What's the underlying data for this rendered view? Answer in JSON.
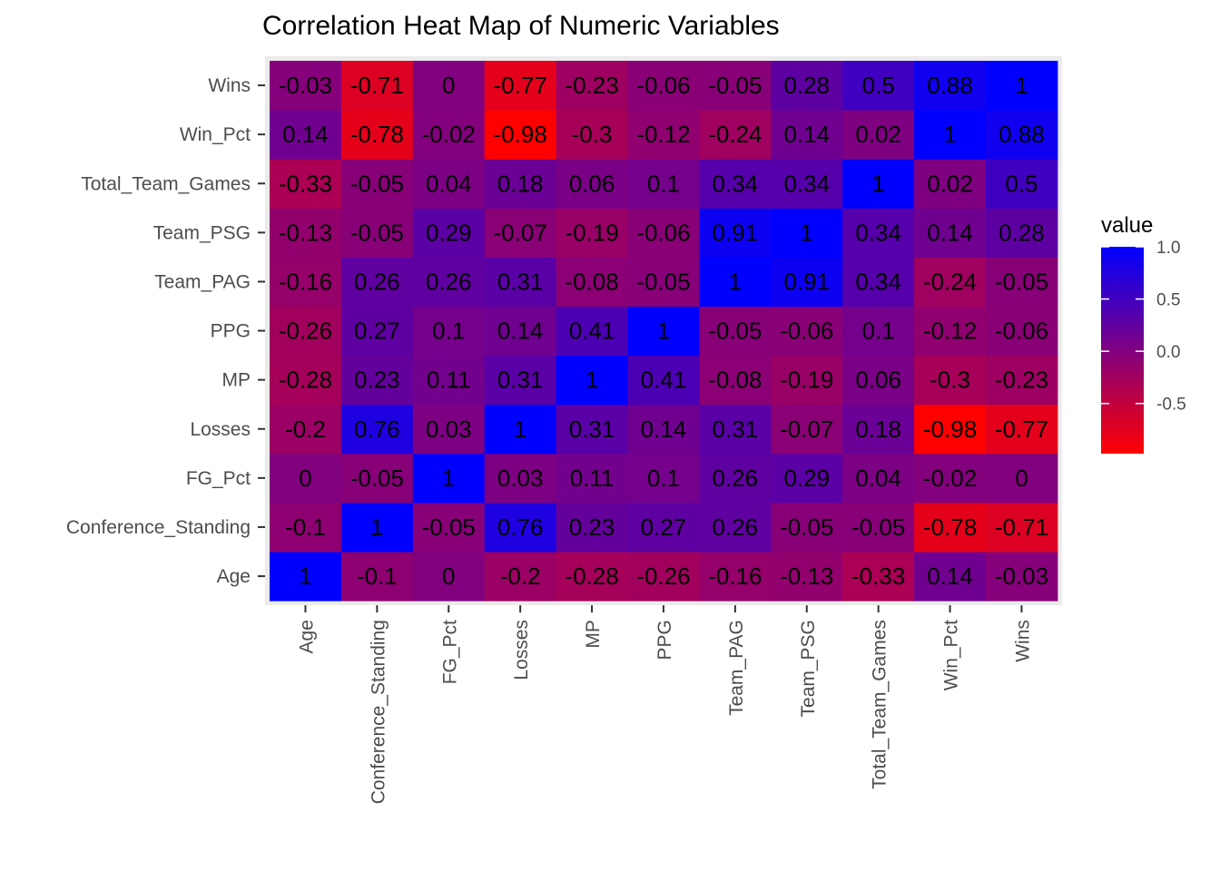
{
  "chart_data": {
    "type": "heatmap",
    "title": "Correlation Heat Map of Numeric Variables",
    "xlabel": "",
    "ylabel": "",
    "variables": [
      "Age",
      "Conference_Standing",
      "FG_Pct",
      "Losses",
      "MP",
      "PPG",
      "Team_PAG",
      "Team_PSG",
      "Total_Team_Games",
      "Win_Pct",
      "Wins"
    ],
    "matrix": [
      [
        1,
        -0.1,
        0,
        -0.2,
        -0.28,
        -0.26,
        -0.16,
        -0.13,
        -0.33,
        0.14,
        -0.03
      ],
      [
        -0.1,
        1,
        -0.05,
        0.76,
        0.23,
        0.27,
        0.26,
        -0.05,
        -0.05,
        -0.78,
        -0.71
      ],
      [
        0,
        -0.05,
        1,
        0.03,
        0.11,
        0.1,
        0.26,
        0.29,
        0.04,
        -0.02,
        0
      ],
      [
        -0.2,
        0.76,
        0.03,
        1,
        0.31,
        0.14,
        0.31,
        -0.07,
        0.18,
        -0.98,
        -0.77
      ],
      [
        -0.28,
        0.23,
        0.11,
        0.31,
        1,
        0.41,
        -0.08,
        -0.19,
        0.06,
        -0.3,
        -0.23
      ],
      [
        -0.26,
        0.27,
        0.1,
        0.14,
        0.41,
        1,
        -0.05,
        -0.06,
        0.1,
        -0.12,
        -0.06
      ],
      [
        -0.16,
        0.26,
        0.26,
        0.31,
        -0.08,
        -0.05,
        1,
        0.91,
        0.34,
        -0.24,
        -0.05
      ],
      [
        -0.13,
        -0.05,
        0.29,
        -0.07,
        -0.19,
        -0.06,
        0.91,
        1,
        0.34,
        0.14,
        0.28
      ],
      [
        -0.33,
        -0.05,
        0.04,
        0.18,
        0.06,
        0.1,
        0.34,
        0.34,
        1,
        0.02,
        0.5
      ],
      [
        0.14,
        -0.78,
        -0.02,
        -0.98,
        -0.3,
        -0.12,
        -0.24,
        0.14,
        0.02,
        1,
        0.88
      ],
      [
        -0.03,
        -0.71,
        0,
        -0.77,
        -0.23,
        -0.06,
        -0.05,
        0.28,
        0.5,
        0.88,
        1
      ]
    ],
    "legend": {
      "title": "value",
      "placement": "right",
      "ticks": [
        1.0,
        0.5,
        0.0,
        -0.5
      ],
      "tick_labels": [
        "1.0",
        "0.5",
        "0.0",
        "-0.5"
      ],
      "range": [
        -0.98,
        1
      ],
      "low_color": "#ff0000",
      "high_color": "#0000ff"
    },
    "panel_background": "#ebebeb",
    "grid": false
  }
}
